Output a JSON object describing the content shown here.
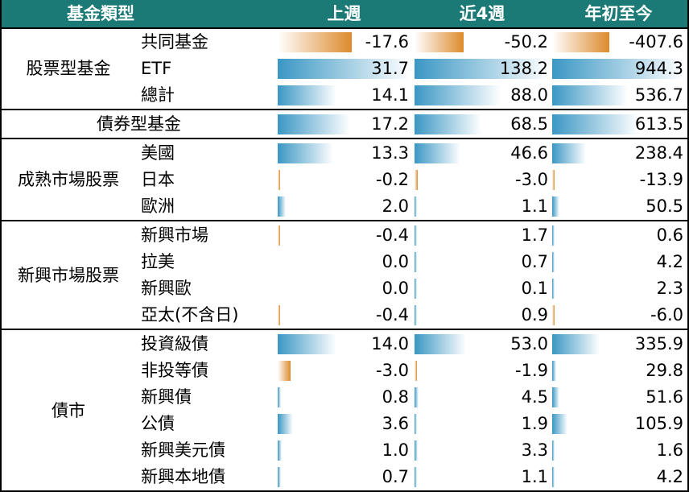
{
  "header": {
    "type_label": "基金類型",
    "columns": [
      "上週",
      "近4週",
      "年初至今"
    ]
  },
  "groups": [
    {
      "label": "股票型基金",
      "rows": [
        {
          "label": "共同基金",
          "values": [
            -17.6,
            -50.2,
            -407.6
          ],
          "display": [
            "-17.6",
            "-50.2",
            "-407.6"
          ]
        },
        {
          "label": "ETF",
          "values": [
            31.7,
            138.2,
            944.3
          ],
          "display": [
            "31.7",
            "138.2",
            "944.3"
          ]
        },
        {
          "label": "總計",
          "values": [
            14.1,
            88.0,
            536.7
          ],
          "display": [
            "14.1",
            "88.0",
            "536.7"
          ]
        }
      ]
    },
    {
      "label": "債券型基金",
      "single": true,
      "rows": [
        {
          "label": "",
          "values": [
            17.2,
            68.5,
            613.5
          ],
          "display": [
            "17.2",
            "68.5",
            "613.5"
          ]
        }
      ]
    },
    {
      "label": "成熟市場股票",
      "rows": [
        {
          "label": "美國",
          "values": [
            13.3,
            46.6,
            238.4
          ],
          "display": [
            "13.3",
            "46.6",
            "238.4"
          ]
        },
        {
          "label": "日本",
          "values": [
            -0.2,
            -3.0,
            -13.9
          ],
          "display": [
            "-0.2",
            "-3.0",
            "-13.9"
          ]
        },
        {
          "label": "歐洲",
          "values": [
            2.0,
            1.1,
            50.5
          ],
          "display": [
            "2.0",
            "1.1",
            "50.5"
          ]
        }
      ]
    },
    {
      "label": "新興市場股票",
      "rows": [
        {
          "label": "新興市場",
          "values": [
            -0.4,
            1.7,
            0.6
          ],
          "display": [
            "-0.4",
            "1.7",
            "0.6"
          ]
        },
        {
          "label": "拉美",
          "values": [
            0.0,
            0.7,
            4.2
          ],
          "display": [
            "0.0",
            "0.7",
            "4.2"
          ]
        },
        {
          "label": "新興歐",
          "values": [
            0.0,
            0.1,
            2.3
          ],
          "display": [
            "0.0",
            "0.1",
            "2.3"
          ]
        },
        {
          "label": "亞太(不含日)",
          "values": [
            -0.4,
            0.9,
            -6.0
          ],
          "display": [
            "-0.4",
            "0.9",
            "-6.0"
          ]
        }
      ]
    },
    {
      "label": "債市",
      "rows": [
        {
          "label": "投資級債",
          "values": [
            14.0,
            53.0,
            335.9
          ],
          "display": [
            "14.0",
            "53.0",
            "335.9"
          ]
        },
        {
          "label": "非投等債",
          "values": [
            -3.0,
            -1.9,
            29.8
          ],
          "display": [
            "-3.0",
            "-1.9",
            "29.8"
          ]
        },
        {
          "label": "新興債",
          "values": [
            0.8,
            4.5,
            51.6
          ],
          "display": [
            "0.8",
            "4.5",
            "51.6"
          ]
        },
        {
          "label": "公債",
          "values": [
            3.6,
            1.9,
            105.9
          ],
          "display": [
            "3.6",
            "1.9",
            "105.9"
          ]
        },
        {
          "label": "新興美元債",
          "values": [
            1.0,
            3.3,
            1.6
          ],
          "display": [
            "1.0",
            "3.3",
            "1.6"
          ]
        },
        {
          "label": "新興本地債",
          "values": [
            0.7,
            1.1,
            4.2
          ],
          "display": [
            "0.7",
            "1.1",
            "4.2"
          ]
        }
      ]
    }
  ],
  "colors": {
    "header_bg": "#1b7a75",
    "positive_bar": "#3b97c4",
    "negative_bar": "#dd8a2c"
  }
}
